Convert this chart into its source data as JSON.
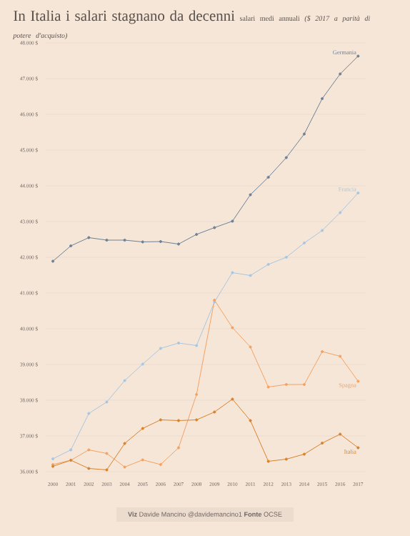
{
  "chart_data": {
    "type": "line",
    "title": "In Italia i salari stagnano da decenni",
    "subtitle": "salari medi annuali *($ 2017 a parità di potere d'acquisto)*",
    "annotations": [
      "**Viz** Davide Mancino  @davidemancino1 **Fonte** OCSE"
    ],
    "x": [
      2000,
      2001,
      2002,
      2003,
      2004,
      2005,
      2006,
      2007,
      2008,
      2009,
      2010,
      2011,
      2012,
      2013,
      2014,
      2015,
      2016,
      2017
    ],
    "series": [
      {
        "name": "Germania",
        "color": "#6d8196",
        "values": [
          41890,
          42320,
          42550,
          42480,
          42480,
          42430,
          42440,
          42370,
          42640,
          42830,
          43010,
          43750,
          44240,
          44790,
          45450,
          46440,
          47130,
          47630
        ]
      },
      {
        "name": "Francia",
        "color": "#a8c6e0",
        "values": [
          36360,
          36610,
          37630,
          37950,
          38550,
          39010,
          39450,
          39600,
          39530,
          40750,
          41570,
          41490,
          41800,
          42000,
          42400,
          42750,
          43250,
          43800
        ]
      },
      {
        "name": "Spagna",
        "color": "#f4a261",
        "values": [
          36200,
          36320,
          36610,
          36510,
          36130,
          36330,
          36200,
          36670,
          38160,
          40800,
          40030,
          39490,
          38370,
          38440,
          38440,
          39360,
          39230,
          38530
        ]
      },
      {
        "name": "Italia",
        "color": "#d9822b",
        "values": [
          36150,
          36320,
          36090,
          36050,
          36790,
          37210,
          37450,
          37430,
          37450,
          37670,
          38030,
          37430,
          36290,
          36350,
          36490,
          36800,
          37050,
          36670
        ]
      }
    ],
    "xlim": [
      1999.6,
      2017.4
    ],
    "xticks": [
      2000,
      2001,
      2002,
      2003,
      2004,
      2005,
      2006,
      2007,
      2008,
      2009,
      2010,
      2011,
      2012,
      2013,
      2014,
      2015,
      2016,
      2017
    ],
    "ylim": [
      36000,
      48000
    ],
    "yticks": [
      {
        "value": 36000,
        "label": "36.000 $"
      },
      {
        "value": 37000,
        "label": "37.000 $"
      },
      {
        "value": 38000,
        "label": "38.000 $"
      },
      {
        "value": 39000,
        "label": "39.000 $"
      },
      {
        "value": 40000,
        "label": "40.000 $"
      },
      {
        "value": 41000,
        "label": "41.000 $"
      },
      {
        "value": 42000,
        "label": "42.000 $"
      },
      {
        "value": 43000,
        "label": "43.000 $"
      },
      {
        "value": 44000,
        "label": "44.000 $"
      },
      {
        "value": 45000,
        "label": "45.000 $"
      },
      {
        "value": 46000,
        "label": "46.000 $"
      },
      {
        "value": 47000,
        "label": "47.000 $"
      },
      {
        "value": 48000,
        "label": "48.000 $"
      }
    ],
    "grid": "y",
    "legend": false,
    "marker": "circle",
    "line_style": "solid"
  }
}
